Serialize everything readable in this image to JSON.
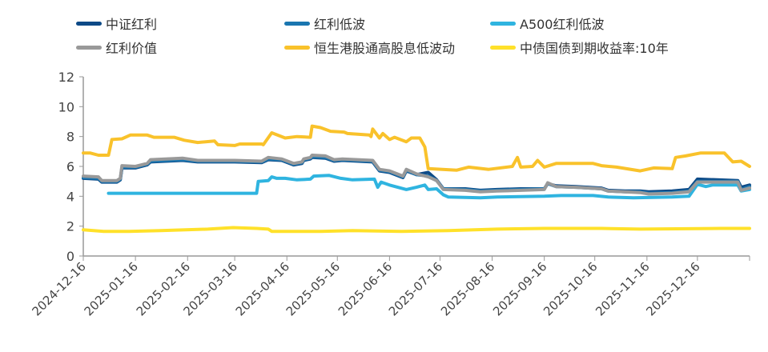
{
  "chart_data": {
    "type": "line",
    "title": "",
    "xlabel": "",
    "ylabel": "",
    "ylim": [
      0,
      12
    ],
    "xlim": [
      "2024-12-16",
      "2026-01-16"
    ],
    "yticks": [
      "0",
      "2",
      "4",
      "6",
      "8",
      "10",
      "12"
    ],
    "xticks": [
      "2024-12-16",
      "2025-01-16",
      "2025-02-16",
      "2025-03-16",
      "2025-04-16",
      "2025-05-16",
      "2025-06-16",
      "2025-07-16",
      "2025-08-16",
      "2025-09-16",
      "2025-10-16",
      "2025-11-16",
      "2025-12-16"
    ],
    "grid": false,
    "legend_position": "top",
    "series": [
      {
        "name": "中证红利",
        "color": "#0d4a87",
        "x": [
          "2024-12-16",
          "2024-12-25",
          "2024-12-27",
          "2025-01-05",
          "2025-01-07",
          "2025-01-08",
          "2025-01-16",
          "2025-01-23",
          "2025-01-25",
          "2025-02-13",
          "2025-02-22",
          "2025-03-16",
          "2025-04-01",
          "2025-04-05",
          "2025-04-13",
          "2025-04-20",
          "2025-04-25",
          "2025-04-26",
          "2025-04-30",
          "2025-05-01",
          "2025-05-09",
          "2025-05-14",
          "2025-05-19",
          "2025-06-06",
          "2025-06-10",
          "2025-06-16",
          "2025-06-24",
          "2025-06-26",
          "2025-07-02",
          "2025-07-09",
          "2025-07-14",
          "2025-07-18",
          "2025-07-31",
          "2025-08-09",
          "2025-08-19",
          "2025-09-02",
          "2025-09-16",
          "2025-09-18",
          "2025-09-23",
          "2025-10-05",
          "2025-10-20",
          "2025-10-24",
          "2025-11-03",
          "2025-11-12",
          "2025-11-17",
          "2025-12-01",
          "2025-12-11",
          "2025-12-16",
          "2026-01-09",
          "2026-01-11",
          "2026-01-16"
        ],
        "y": [
          5.2,
          5.15,
          4.95,
          4.95,
          5.1,
          5.9,
          5.9,
          6.1,
          6.3,
          6.4,
          6.3,
          6.3,
          6.25,
          6.45,
          6.4,
          6.1,
          6.2,
          6.4,
          6.5,
          6.6,
          6.55,
          6.35,
          6.4,
          6.3,
          5.7,
          5.6,
          5.25,
          5.7,
          5.45,
          5.6,
          5.1,
          4.5,
          4.5,
          4.4,
          4.45,
          4.5,
          4.5,
          4.85,
          4.7,
          4.65,
          4.55,
          4.4,
          4.35,
          4.35,
          4.3,
          4.35,
          4.45,
          5.15,
          5.05,
          4.6,
          4.75
        ]
      },
      {
        "name": "红利低波",
        "color": "#1a76b0",
        "x": [
          "2024-12-16",
          "2024-12-25",
          "2024-12-27",
          "2025-01-05",
          "2025-01-07",
          "2025-01-08",
          "2025-01-16",
          "2025-01-23",
          "2025-01-25",
          "2025-02-13",
          "2025-02-22",
          "2025-03-16",
          "2025-04-01",
          "2025-04-05",
          "2025-04-13",
          "2025-04-20",
          "2025-04-25",
          "2025-04-26",
          "2025-04-30",
          "2025-05-01",
          "2025-05-09",
          "2025-05-14",
          "2025-05-19",
          "2025-06-06",
          "2025-06-10",
          "2025-06-16",
          "2025-06-24",
          "2025-06-26",
          "2025-07-02",
          "2025-07-09",
          "2025-07-14",
          "2025-07-18",
          "2025-07-31",
          "2025-08-09",
          "2025-08-19",
          "2025-09-02",
          "2025-09-16",
          "2025-09-18",
          "2025-09-23",
          "2025-10-05",
          "2025-10-20",
          "2025-10-24",
          "2025-11-03",
          "2025-11-12",
          "2025-11-17",
          "2025-12-01",
          "2025-12-11",
          "2025-12-16",
          "2026-01-09",
          "2026-01-11",
          "2026-01-16"
        ],
        "y": [
          5.25,
          5.2,
          5.0,
          5.0,
          5.15,
          5.95,
          5.95,
          6.15,
          6.35,
          6.45,
          6.35,
          6.35,
          6.3,
          6.5,
          6.45,
          6.15,
          6.25,
          6.45,
          6.55,
          6.65,
          6.6,
          6.4,
          6.45,
          6.35,
          5.75,
          5.65,
          5.3,
          5.75,
          5.45,
          5.35,
          5.05,
          4.5,
          4.45,
          4.35,
          4.4,
          4.45,
          4.5,
          4.85,
          4.65,
          4.6,
          4.5,
          4.35,
          4.3,
          4.3,
          4.2,
          4.25,
          4.35,
          5.0,
          5.0,
          4.45,
          4.65
        ]
      },
      {
        "name": "A500红利低波",
        "color": "#2fb4e0",
        "x": [
          "2024-12-31",
          "2025-03-29",
          "2025-03-30",
          "2025-04-05",
          "2025-04-07",
          "2025-04-10",
          "2025-04-15",
          "2025-04-22",
          "2025-04-30",
          "2025-05-02",
          "2025-05-11",
          "2025-05-18",
          "2025-05-25",
          "2025-06-07",
          "2025-06-09",
          "2025-06-11",
          "2025-06-16",
          "2025-06-26",
          "2025-07-02",
          "2025-07-07",
          "2025-07-09",
          "2025-07-14",
          "2025-07-18",
          "2025-07-21",
          "2025-08-09",
          "2025-08-19",
          "2025-09-16",
          "2025-09-26",
          "2025-10-15",
          "2025-10-24",
          "2025-11-08",
          "2025-12-01",
          "2025-12-11",
          "2025-12-16",
          "2025-12-21",
          "2025-12-25",
          "2026-01-09",
          "2026-01-11",
          "2026-01-16"
        ],
        "y": [
          4.2,
          4.2,
          5.0,
          5.05,
          5.3,
          5.2,
          5.2,
          5.1,
          5.15,
          5.35,
          5.4,
          5.2,
          5.1,
          5.15,
          4.6,
          4.95,
          4.75,
          4.45,
          4.6,
          4.75,
          4.45,
          4.5,
          4.1,
          3.95,
          3.9,
          3.95,
          4.0,
          4.05,
          4.05,
          3.95,
          3.9,
          3.95,
          4.0,
          4.8,
          4.65,
          4.75,
          4.75,
          4.35,
          4.45
        ]
      },
      {
        "name": "红利价值",
        "color": "#999999",
        "x": [
          "2024-12-16",
          "2024-12-25",
          "2024-12-27",
          "2025-01-05",
          "2025-01-07",
          "2025-01-08",
          "2025-01-16",
          "2025-01-23",
          "2025-01-25",
          "2025-02-13",
          "2025-02-22",
          "2025-03-16",
          "2025-04-01",
          "2025-04-05",
          "2025-04-13",
          "2025-04-20",
          "2025-04-25",
          "2025-04-26",
          "2025-04-30",
          "2025-05-01",
          "2025-05-09",
          "2025-05-14",
          "2025-05-19",
          "2025-06-06",
          "2025-06-10",
          "2025-06-16",
          "2025-06-24",
          "2025-06-26",
          "2025-07-02",
          "2025-07-09",
          "2025-07-14",
          "2025-07-18",
          "2025-07-31",
          "2025-08-09",
          "2025-08-19",
          "2025-09-02",
          "2025-09-16",
          "2025-09-18",
          "2025-09-23",
          "2025-10-05",
          "2025-10-20",
          "2025-10-24",
          "2025-11-03",
          "2025-11-12",
          "2025-11-17",
          "2025-12-01",
          "2025-12-11",
          "2025-12-16",
          "2026-01-09",
          "2026-01-11",
          "2026-01-16"
        ],
        "y": [
          5.35,
          5.3,
          5.05,
          5.05,
          5.2,
          6.05,
          6.0,
          6.2,
          6.45,
          6.55,
          6.4,
          6.4,
          6.35,
          6.6,
          6.5,
          6.2,
          6.3,
          6.5,
          6.6,
          6.75,
          6.7,
          6.45,
          6.5,
          6.4,
          5.8,
          5.7,
          5.35,
          5.8,
          5.5,
          5.3,
          5.05,
          4.45,
          4.4,
          4.3,
          4.35,
          4.4,
          4.45,
          4.9,
          4.65,
          4.6,
          4.5,
          4.35,
          4.3,
          4.25,
          4.15,
          4.2,
          4.3,
          4.95,
          4.95,
          4.4,
          4.55
        ]
      },
      {
        "name": "恒生港股通高股息低波动",
        "color": "#f9c22b",
        "x": [
          "2024-12-16",
          "2024-12-20",
          "2024-12-25",
          "2024-12-31",
          "2025-01-02",
          "2025-01-08",
          "2025-01-13",
          "2025-01-23",
          "2025-01-27",
          "2025-02-08",
          "2025-02-14",
          "2025-02-22",
          "2025-03-04",
          "2025-03-06",
          "2025-03-16",
          "2025-03-19",
          "2025-04-01",
          "2025-04-02",
          "2025-04-07",
          "2025-04-15",
          "2025-04-22",
          "2025-04-30",
          "2025-05-01",
          "2025-05-06",
          "2025-05-12",
          "2025-05-20",
          "2025-05-22",
          "2025-06-04",
          "2025-06-05",
          "2025-06-06",
          "2025-06-10",
          "2025-06-12",
          "2025-06-16",
          "2025-06-19",
          "2025-06-26",
          "2025-06-29",
          "2025-07-04",
          "2025-07-07",
          "2025-07-09",
          "2025-07-26",
          "2025-08-02",
          "2025-08-14",
          "2025-08-28",
          "2025-08-31",
          "2025-09-02",
          "2025-09-09",
          "2025-09-12",
          "2025-09-16",
          "2025-09-23",
          "2025-10-15",
          "2025-10-20",
          "2025-10-29",
          "2025-11-12",
          "2025-11-20",
          "2025-12-01",
          "2025-12-03",
          "2025-12-09",
          "2025-12-18",
          "2026-01-01",
          "2026-01-06",
          "2026-01-11",
          "2026-01-16"
        ],
        "y": [
          6.9,
          6.9,
          6.75,
          6.75,
          7.8,
          7.85,
          8.1,
          8.1,
          7.95,
          7.95,
          7.75,
          7.6,
          7.7,
          7.45,
          7.4,
          7.5,
          7.5,
          7.45,
          8.25,
          7.9,
          8.0,
          7.95,
          8.7,
          8.6,
          8.35,
          8.3,
          8.2,
          8.1,
          8.0,
          8.5,
          7.9,
          8.2,
          7.8,
          7.95,
          7.65,
          7.9,
          7.9,
          7.3,
          5.85,
          5.75,
          5.95,
          5.8,
          6.0,
          6.6,
          5.95,
          6.0,
          6.4,
          5.95,
          6.2,
          6.2,
          6.05,
          5.95,
          5.7,
          5.9,
          5.85,
          6.6,
          6.7,
          6.9,
          6.9,
          6.3,
          6.35,
          6.0
        ]
      },
      {
        "name": "中债国债到期收益率:10年",
        "color": "#ffe12a",
        "x": [
          "2024-12-16",
          "2024-12-28",
          "2025-01-12",
          "2025-01-31",
          "2025-02-28",
          "2025-03-15",
          "2025-03-29",
          "2025-04-05",
          "2025-04-07",
          "2025-05-06",
          "2025-05-25",
          "2025-06-23",
          "2025-07-21",
          "2025-08-19",
          "2025-09-16",
          "2025-10-20",
          "2025-11-12",
          "2025-12-30",
          "2026-01-16"
        ],
        "y": [
          1.75,
          1.65,
          1.65,
          1.7,
          1.8,
          1.9,
          1.85,
          1.8,
          1.65,
          1.65,
          1.7,
          1.65,
          1.7,
          1.8,
          1.85,
          1.85,
          1.8,
          1.85,
          1.85
        ]
      }
    ]
  }
}
